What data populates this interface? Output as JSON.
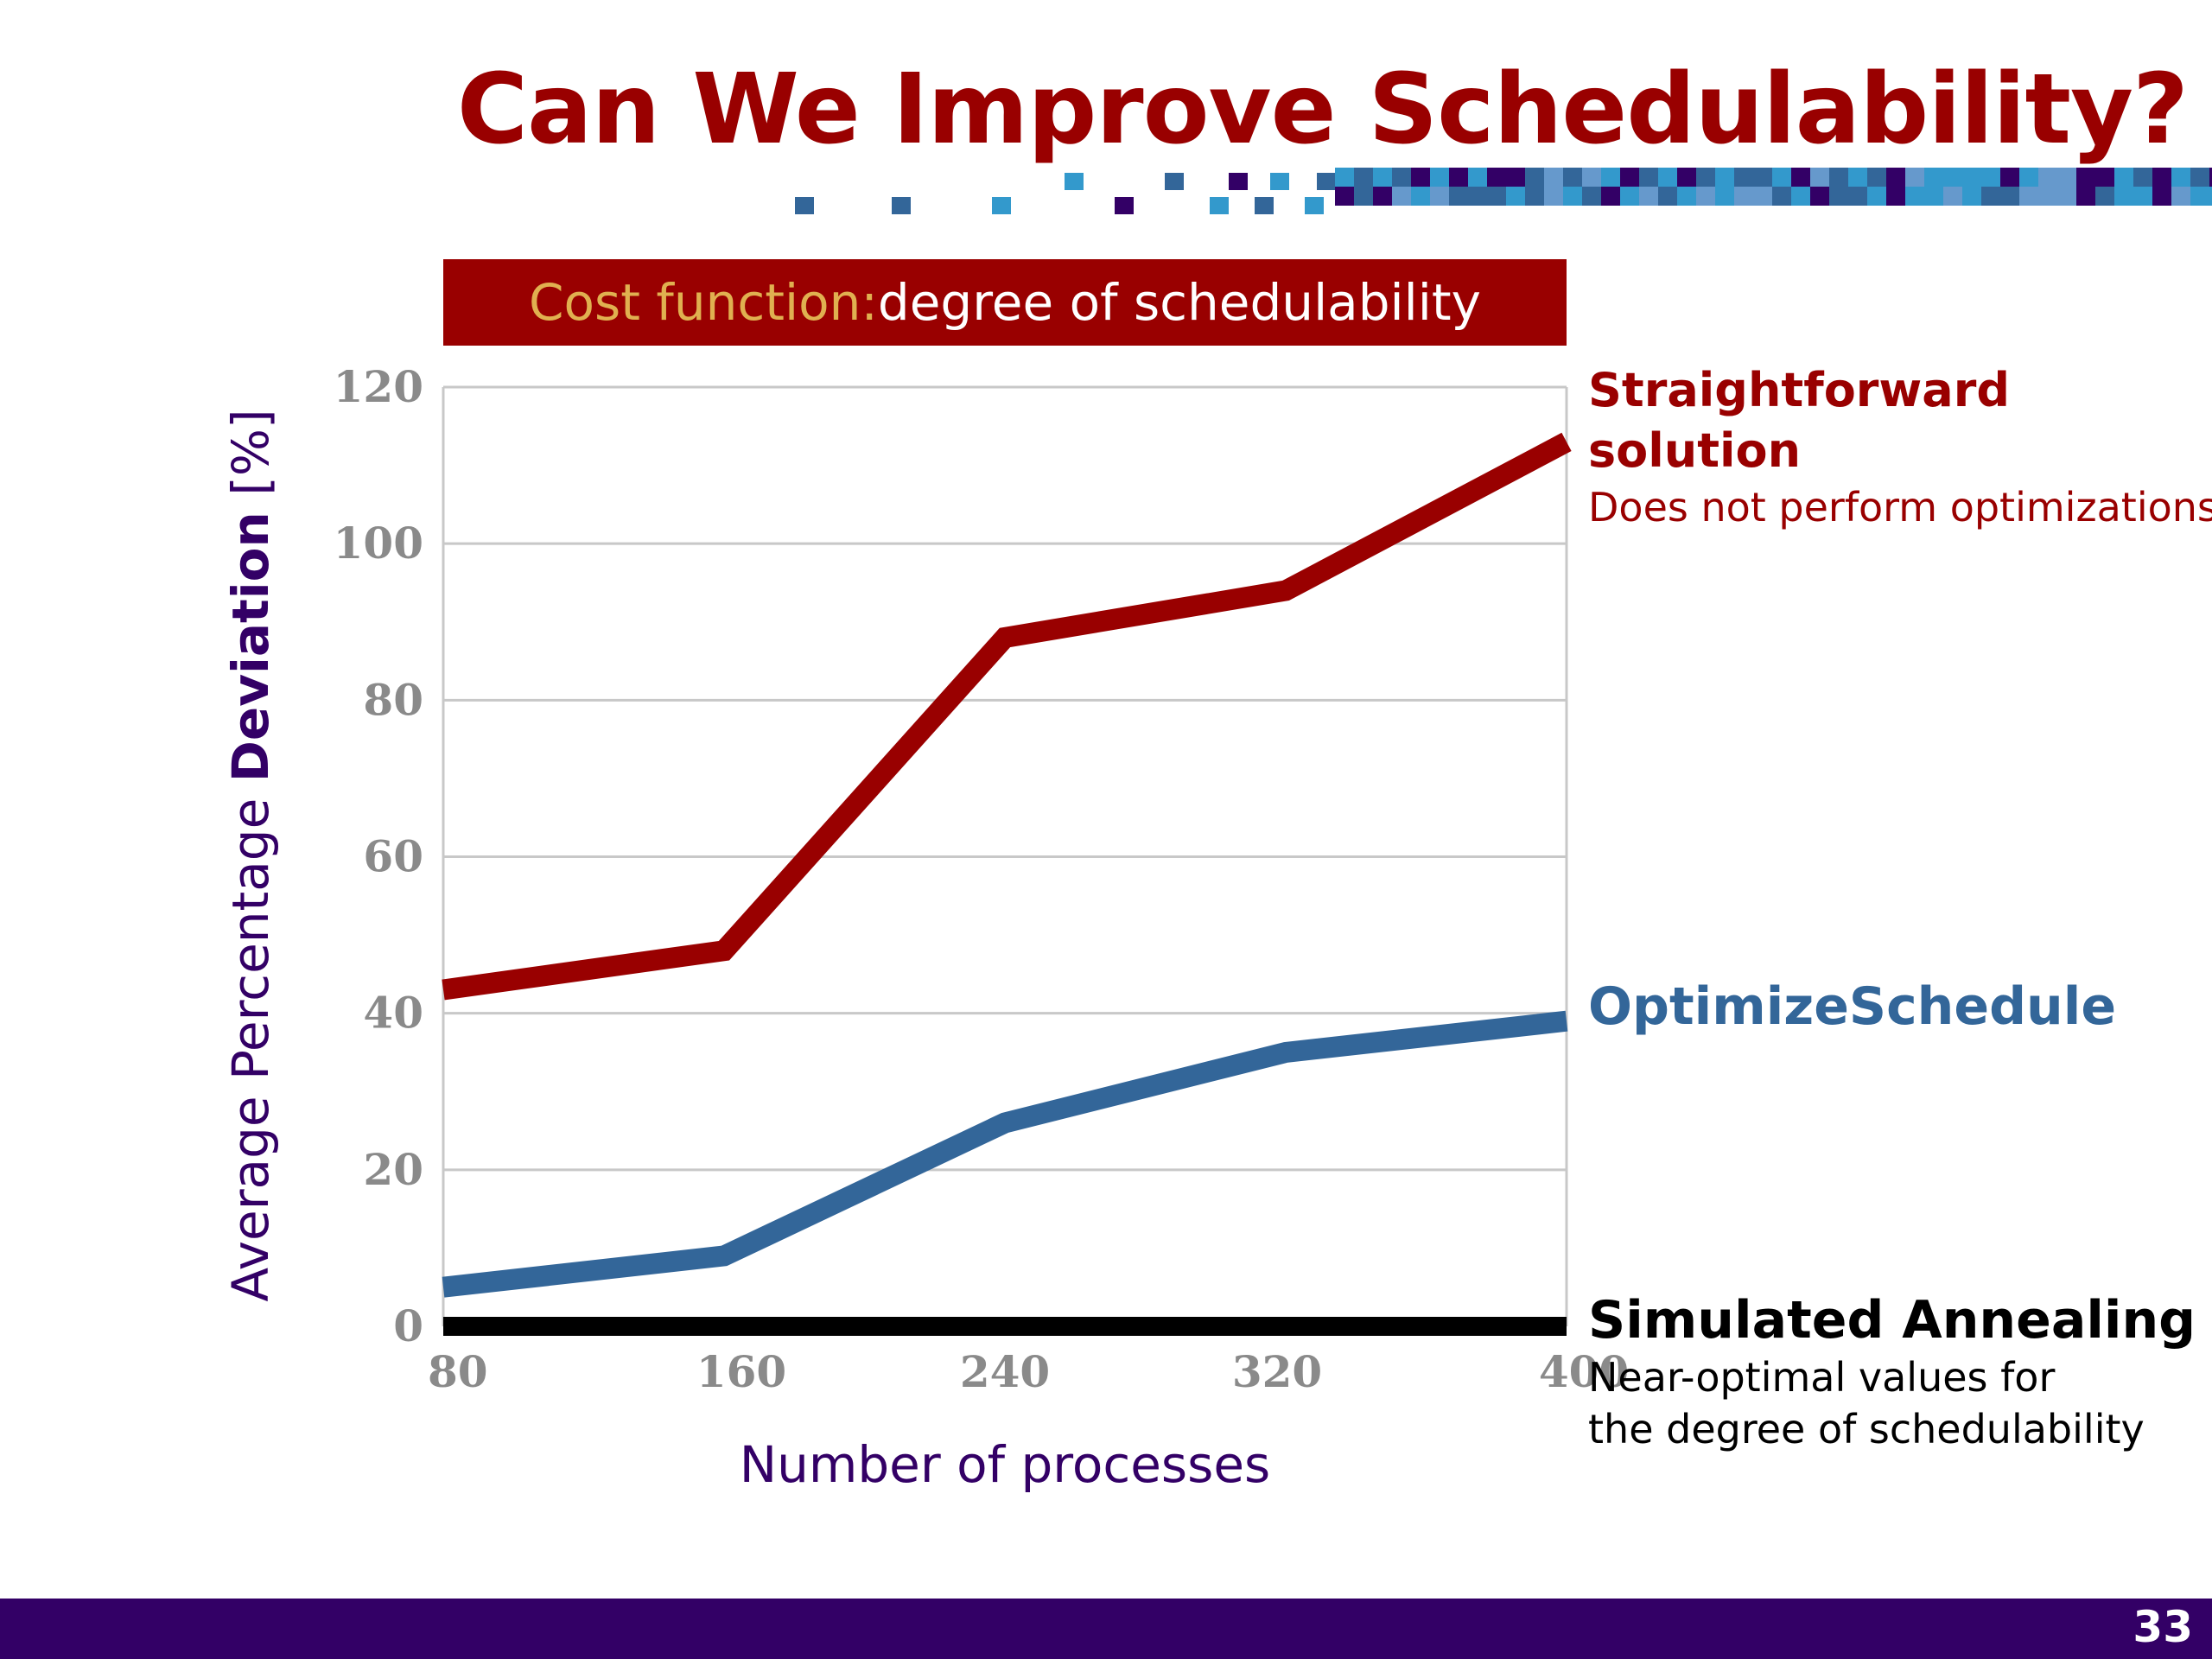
{
  "slide": {
    "title": "Can We Improve Schedulability?",
    "subtitle_lead": "Cost function:",
    "subtitle_rest": " degree of schedulability",
    "page_number": "33"
  },
  "colors": {
    "title": "#990000",
    "banner": "#990000",
    "banner_lead_text": "#e0b050",
    "footer": "#330066",
    "straightforward": "#990000",
    "optimize": "#336699",
    "annealing": "#000000",
    "grid": "#c8c8c8",
    "deco": [
      "#336699",
      "#3399cc",
      "#330066",
      "#6699cc"
    ]
  },
  "chart_data": {
    "type": "line",
    "x": [
      80,
      160,
      240,
      320,
      400
    ],
    "xlim": [
      80,
      400
    ],
    "ylim": [
      0,
      120
    ],
    "yticks": [
      0,
      20,
      40,
      60,
      80,
      100,
      120
    ],
    "xticks": [
      80,
      160,
      240,
      320,
      400
    ],
    "ylabel_pre": "Average Percentage ",
    "ylabel_bold": "Deviation",
    "ylabel_post": " [%]",
    "xlabel": "Number of processes",
    "grid": true,
    "series": [
      {
        "key": "straightforward",
        "values": [
          43,
          48,
          88,
          94,
          113
        ],
        "color": "#990000"
      },
      {
        "key": "optimize",
        "values": [
          5,
          9,
          26,
          35,
          39
        ],
        "color": "#336699"
      },
      {
        "key": "annealing",
        "values": [
          0,
          0,
          0,
          0,
          0
        ],
        "color": "#000000"
      }
    ],
    "annotations": {
      "straightforward_title_1": "Straightforward",
      "straightforward_title_2": "solution",
      "straightforward_sub": "Does not perform optimizations",
      "optimize_title": "OptimizeSchedule",
      "annealing_title": "Simulated Annealing",
      "annealing_sub_1": "Near-optimal values for",
      "annealing_sub_2": "the degree of schedulability"
    }
  }
}
